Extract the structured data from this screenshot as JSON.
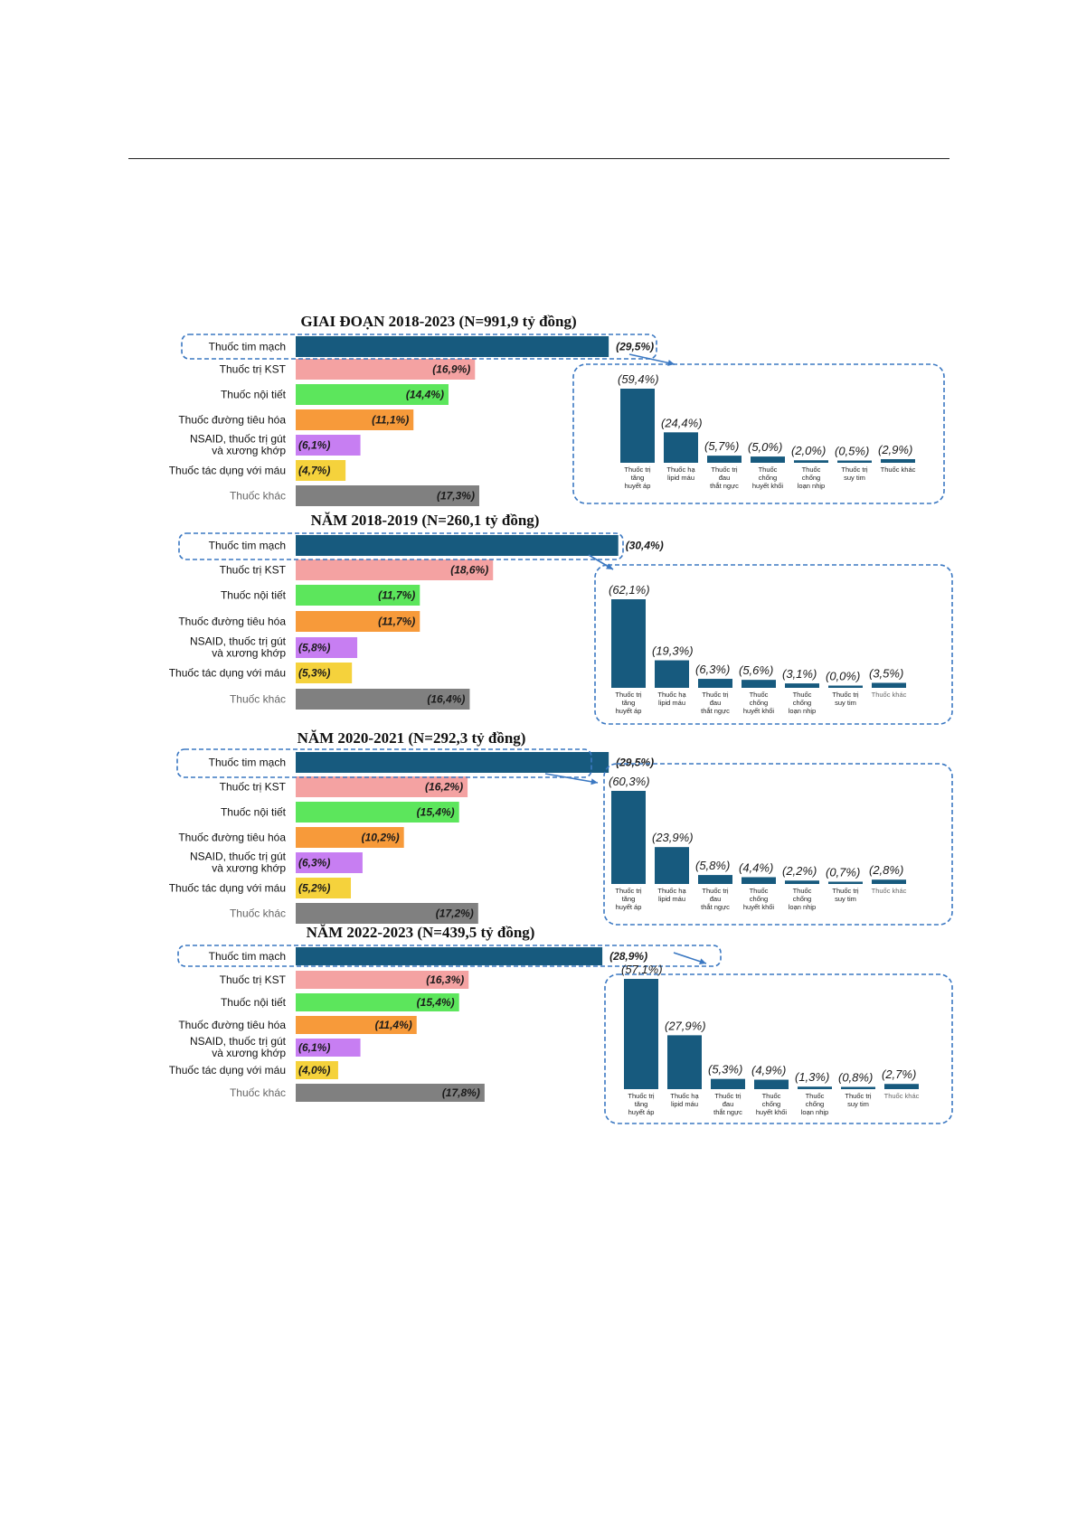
{
  "chart_data": [
    {
      "type": "bar",
      "title": "GIAI ĐOẠN 2018-2023 (N=991,9 tỷ đồng)",
      "categories": [
        "Thuốc tim mạch",
        "Thuốc trị KST",
        "Thuốc nội tiết",
        "Thuốc đường tiêu hóa",
        "NSAID, thuốc trị gút và xương khớp",
        "Thuốc tác dụng với máu",
        "Thuốc khác"
      ],
      "values": [
        29.5,
        16.9,
        14.4,
        11.1,
        6.1,
        4.7,
        17.3
      ],
      "value_labels": [
        "(29,5%)",
        "(16,9%)",
        "(14,4%)",
        "(11,1%)",
        "(6,1%)",
        "(4,7%)",
        "(17,3%)"
      ],
      "breakdown": {
        "categories": [
          "Thuốc trị tăng huyết áp",
          "Thuốc hạ lipid máu",
          "Thuốc trị đau thắt ngực",
          "Thuốc chống huyết khối",
          "Thuốc chống loạn nhịp",
          "Thuốc trị suy tim",
          "Thuốc khác"
        ],
        "values": [
          59.4,
          24.4,
          5.7,
          5.0,
          2.0,
          0.5,
          2.9
        ],
        "value_labels": [
          "(59,4%)",
          "(24,4%)",
          "(5,7%)",
          "(5,0%)",
          "(2,0%)",
          "(0,5%)",
          "(2,9%)"
        ]
      }
    },
    {
      "type": "bar",
      "title": "NĂM 2018-2019 (N=260,1 tỷ đồng)",
      "categories": [
        "Thuốc tim mạch",
        "Thuốc trị KST",
        "Thuốc nội tiết",
        "Thuốc đường tiêu hóa",
        "NSAID, thuốc trị gút và xương khớp",
        "Thuốc tác dụng với máu",
        "Thuốc khác"
      ],
      "values": [
        30.4,
        18.6,
        11.7,
        11.7,
        5.8,
        5.3,
        16.4
      ],
      "value_labels": [
        "(30,4%)",
        "(18,6%)",
        "(11,7%)",
        "(11,7%)",
        "(5,8%)",
        "(5,3%)",
        "(16,4%)"
      ],
      "breakdown": {
        "categories": [
          "Thuốc trị tăng huyết áp",
          "Thuốc hạ lipid máu",
          "Thuốc trị đau thắt ngực",
          "Thuốc chống huyết khối",
          "Thuốc chống loạn nhịp",
          "Thuốc trị suy tim",
          "Thuốc khác"
        ],
        "values": [
          62.1,
          19.3,
          6.3,
          5.6,
          3.1,
          0.0,
          3.5
        ],
        "value_labels": [
          "(62,1%)",
          "(19,3%)",
          "(6,3%)",
          "(5,6%)",
          "(3,1%)",
          "(0,0%)",
          "(3,5%)"
        ]
      }
    },
    {
      "type": "bar",
      "title": "NĂM 2020-2021 (N=292,3 tỷ đồng)",
      "categories": [
        "Thuốc tim mạch",
        "Thuốc trị KST",
        "Thuốc nội tiết",
        "Thuốc đường tiêu hóa",
        "NSAID, thuốc trị gút và xương khớp",
        "Thuốc tác dụng với máu",
        "Thuốc khác"
      ],
      "values": [
        29.5,
        16.2,
        15.4,
        10.2,
        6.3,
        5.2,
        17.2
      ],
      "value_labels": [
        "(29,5%)",
        "(16,2%)",
        "(15,4%)",
        "(10,2%)",
        "(6,3%)",
        "(5,2%)",
        "(17,2%)"
      ],
      "breakdown": {
        "categories": [
          "Thuốc trị tăng huyết áp",
          "Thuốc hạ lipid máu",
          "Thuốc trị đau thắt ngực",
          "Thuốc chống huyết khối",
          "Thuốc chống loạn nhịp",
          "Thuốc trị suy tim",
          "Thuốc khác"
        ],
        "values": [
          60.3,
          23.9,
          5.8,
          4.4,
          2.2,
          0.7,
          2.8
        ],
        "value_labels": [
          "(60,3%)",
          "(23,9%)",
          "(5,8%)",
          "(4,4%)",
          "(2,2%)",
          "(0,7%)",
          "(2,8%)"
        ]
      }
    },
    {
      "type": "bar",
      "title": "NĂM 2022-2023 (N=439,5 tỷ đồng)",
      "categories": [
        "Thuốc tim mạch",
        "Thuốc trị KST",
        "Thuốc nội tiết",
        "Thuốc đường tiêu hóa",
        "NSAID, thuốc trị gút và xương khớp",
        "Thuốc tác dụng với máu",
        "Thuốc khác"
      ],
      "values": [
        28.9,
        16.3,
        15.4,
        11.4,
        6.1,
        4.0,
        17.8
      ],
      "value_labels": [
        "(28,9%)",
        "(16,3%)",
        "(15,4%)",
        "(11,4%)",
        "(6,1%)",
        "(4,0%)",
        "(17,8%)"
      ],
      "breakdown": {
        "categories": [
          "Thuốc trị tăng huyết áp",
          "Thuốc hạ lipid máu",
          "Thuốc trị đau thắt ngực",
          "Thuốc chống huyết khối",
          "Thuốc chống loạn nhịp",
          "Thuốc trị suy tim",
          "Thuốc khác"
        ],
        "values": [
          57.1,
          27.9,
          5.3,
          4.9,
          1.3,
          0.8,
          2.7
        ],
        "value_labels": [
          "(57,1%)",
          "(27,9%)",
          "(5,3%)",
          "(4,9%)",
          "(1,3%)",
          "(0,8%)",
          "(2,7%)"
        ]
      }
    }
  ],
  "colors": {
    "categories": [
      "#175a7e",
      "#f4a2a2",
      "#5ce65c",
      "#f79a3a",
      "#c77ef2",
      "#f5d23c",
      "#808080"
    ],
    "breakdown_bar": "#175a7e",
    "highlight_box": "#3b78c2"
  }
}
